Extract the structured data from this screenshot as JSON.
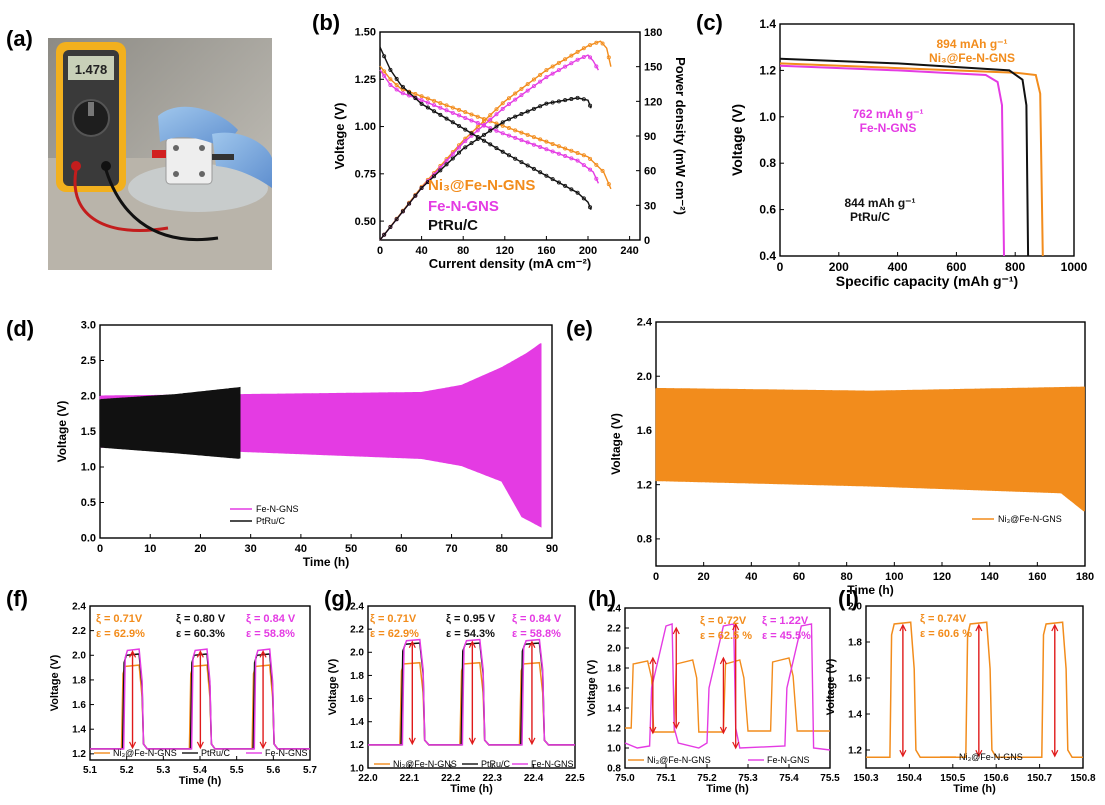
{
  "panel_labels": [
    "(a)",
    "(b)",
    "(c)",
    "(d)",
    "(e)",
    "(f)",
    "(g)",
    "(h)",
    "(i)"
  ],
  "photo": {
    "meter_reading": "1.478"
  },
  "colors": {
    "orange": "#f28c1c",
    "magenta": "#e43be3",
    "black": "#111111",
    "red": "#e01a1a"
  },
  "chart_data": [
    {
      "id": "b",
      "type": "line",
      "xlabel": "Current density (mA cm⁻²)",
      "ylabel": "Voltage (V)",
      "ylabel_right": "Power density (mW cm⁻²)",
      "xlim": [
        0,
        250
      ],
      "ylim": [
        0.4,
        1.5
      ],
      "ylim_right": [
        0,
        180
      ],
      "xticks": [
        "0",
        "40",
        "80",
        "120",
        "160",
        "200",
        "240"
      ],
      "yticks": [
        "0.50",
        "0.75",
        "1.00",
        "1.25",
        "1.50"
      ],
      "yticks_right": [
        "0",
        "30",
        "60",
        "90",
        "120",
        "150",
        "180"
      ],
      "series": [
        {
          "name": "Ni₃@Fe-N-GNS",
          "color": "#f28c1c",
          "voltage": [
            [
              0,
              1.32
            ],
            [
              10,
              1.25
            ],
            [
              20,
              1.2
            ],
            [
              40,
              1.16
            ],
            [
              80,
              1.08
            ],
            [
              120,
              1.0
            ],
            [
              160,
              0.92
            ],
            [
              200,
              0.84
            ],
            [
              215,
              0.76
            ],
            [
              222,
              0.67
            ]
          ],
          "power": [
            [
              0,
              0
            ],
            [
              40,
              46
            ],
            [
              80,
              86
            ],
            [
              120,
              120
            ],
            [
              160,
              147
            ],
            [
              200,
              168
            ],
            [
              212,
              172
            ],
            [
              218,
              166
            ],
            [
              222,
              150
            ]
          ]
        },
        {
          "name": "Fe-N-GNS",
          "color": "#e43be3",
          "voltage": [
            [
              0,
              1.3
            ],
            [
              10,
              1.22
            ],
            [
              20,
              1.18
            ],
            [
              40,
              1.14
            ],
            [
              80,
              1.05
            ],
            [
              120,
              0.96
            ],
            [
              160,
              0.88
            ],
            [
              190,
              0.82
            ],
            [
              205,
              0.76
            ],
            [
              210,
              0.7
            ]
          ],
          "power": [
            [
              0,
              0
            ],
            [
              40,
              45
            ],
            [
              80,
              84
            ],
            [
              120,
              115
            ],
            [
              160,
              141
            ],
            [
              190,
              156
            ],
            [
              200,
              160
            ],
            [
              205,
              155
            ],
            [
              210,
              147
            ]
          ]
        },
        {
          "name": "PtRu/C",
          "color": "#111111",
          "voltage": [
            [
              0,
              1.42
            ],
            [
              10,
              1.3
            ],
            [
              20,
              1.22
            ],
            [
              40,
              1.12
            ],
            [
              80,
              0.99
            ],
            [
              120,
              0.86
            ],
            [
              160,
              0.74
            ],
            [
              190,
              0.65
            ],
            [
              200,
              0.6
            ],
            [
              203,
              0.56
            ]
          ],
          "power": [
            [
              0,
              0
            ],
            [
              40,
              45
            ],
            [
              80,
              79
            ],
            [
              120,
              103
            ],
            [
              160,
              118
            ],
            [
              190,
              123
            ],
            [
              200,
              121
            ],
            [
              203,
              114
            ]
          ]
        }
      ]
    },
    {
      "id": "c",
      "type": "line",
      "xlabel": "Specific capacity (mAh g⁻¹)",
      "ylabel": "Voltage (V)",
      "xlim": [
        0,
        1000
      ],
      "ylim": [
        0.4,
        1.4
      ],
      "xticks": [
        "0",
        "200",
        "400",
        "600",
        "800",
        "1000"
      ],
      "yticks": [
        "0.4",
        "0.6",
        "0.8",
        "1.0",
        "1.2",
        "1.4"
      ],
      "annotations": [
        "894 mAh g⁻¹",
        "Ni₃@Fe-N-GNS",
        "762 mAh g⁻¹",
        "Fe-N-GNS",
        "844 mAh g⁻¹",
        "PtRu/C"
      ],
      "series": [
        {
          "name": "Ni₃@Fe-N-GNS",
          "color": "#f28c1c",
          "points": [
            [
              0,
              1.23
            ],
            [
              400,
              1.21
            ],
            [
              800,
              1.19
            ],
            [
              870,
              1.18
            ],
            [
              885,
              1.1
            ],
            [
              894,
              0.4
            ]
          ]
        },
        {
          "name": "Fe-N-GNS",
          "color": "#e43be3",
          "points": [
            [
              0,
              1.22
            ],
            [
              400,
              1.2
            ],
            [
              700,
              1.18
            ],
            [
              740,
              1.15
            ],
            [
              755,
              1.05
            ],
            [
              762,
              0.4
            ]
          ]
        },
        {
          "name": "PtRu/C",
          "color": "#111111",
          "points": [
            [
              0,
              1.25
            ],
            [
              400,
              1.23
            ],
            [
              780,
              1.2
            ],
            [
              825,
              1.16
            ],
            [
              838,
              1.05
            ],
            [
              844,
              0.4
            ]
          ]
        }
      ]
    },
    {
      "id": "d",
      "type": "line",
      "xlabel": "Time (h)",
      "ylabel": "Voltage (V)",
      "xlim": [
        0,
        90
      ],
      "ylim": [
        0,
        3.0
      ],
      "xticks": [
        "0",
        "10",
        "20",
        "30",
        "40",
        "50",
        "60",
        "70",
        "80",
        "90"
      ],
      "yticks": [
        "0.0",
        "0.5",
        "1.0",
        "1.5",
        "2.0",
        "2.5",
        "3.0"
      ],
      "legend": [
        "Fe-N-GNS",
        "PtRu/C"
      ],
      "legend_position": "bottom-center",
      "series": [
        {
          "name": "Fe-N-GNS",
          "color": "#e43be3",
          "charge": [
            [
              0,
              2.0
            ],
            [
              28,
              2.02
            ],
            [
              64,
              2.05
            ],
            [
              72,
              2.15
            ],
            [
              80,
              2.4
            ],
            [
              85,
              2.6
            ],
            [
              88,
              2.75
            ]
          ],
          "discharge": [
            [
              0,
              1.28
            ],
            [
              28,
              1.22
            ],
            [
              64,
              1.12
            ],
            [
              72,
              1.02
            ],
            [
              80,
              0.8
            ],
            [
              84,
              0.3
            ],
            [
              88,
              0.15
            ]
          ]
        },
        {
          "name": "PtRu/C",
          "color": "#111111",
          "charge": [
            [
              0,
              1.95
            ],
            [
              15,
              2.02
            ],
            [
              28,
              2.12
            ]
          ],
          "discharge": [
            [
              0,
              1.28
            ],
            [
              15,
              1.2
            ],
            [
              28,
              1.12
            ]
          ]
        }
      ]
    },
    {
      "id": "e",
      "type": "line",
      "xlabel": "Time (h)",
      "ylabel": "Voltage (V)",
      "xlim": [
        0,
        180
      ],
      "ylim": [
        0.6,
        2.4
      ],
      "xticks": [
        "0",
        "20",
        "40",
        "60",
        "80",
        "100",
        "120",
        "140",
        "160",
        "180"
      ],
      "yticks": [
        "0.8",
        "1.2",
        "1.6",
        "2.0",
        "2.4"
      ],
      "legend": [
        "Ni₃@Fe-N-GNS"
      ],
      "legend_position": "bottom-right",
      "series": [
        {
          "name": "Ni₃@Fe-N-GNS",
          "color": "#f28c1c",
          "charge": [
            [
              0,
              1.91
            ],
            [
              90,
              1.89
            ],
            [
              180,
              1.92
            ]
          ],
          "discharge": [
            [
              0,
              1.23
            ],
            [
              90,
              1.19
            ],
            [
              170,
              1.14
            ],
            [
              180,
              1.0
            ]
          ]
        }
      ]
    },
    {
      "id": "f",
      "type": "line",
      "xlabel": "Time (h)",
      "ylabel": "Voltage (V)",
      "xlim": [
        5.1,
        5.7
      ],
      "ylim": [
        1.15,
        2.4
      ],
      "xticks": [
        "5.1",
        "5.2",
        "5.3",
        "5.4",
        "5.5",
        "5.6",
        "5.7"
      ],
      "yticks": [
        "1.2",
        "1.4",
        "1.6",
        "1.8",
        "2.0",
        "2.2",
        "2.4"
      ],
      "legend": [
        "Ni₃@Fe-N-GNS",
        "PtRu/C",
        "Fe-N-GNS"
      ],
      "legend_position": "bottom",
      "annotations": [
        {
          "xi": "ξ = 0.71V",
          "eps": "ε = 62.9%",
          "color": "#f28c1c"
        },
        {
          "xi": "ξ = 0.80 V",
          "eps": "ε = 60.3%",
          "color": "#111111"
        },
        {
          "xi": "ξ = 0.84 V",
          "eps": "ε = 58.8%",
          "color": "#e43be3"
        }
      ],
      "cycle_start": [
        5.186,
        5.371,
        5.542
      ],
      "cycle_width": 0.06,
      "low": 1.24,
      "series": [
        {
          "name": "Ni₃@Fe-N-GNS",
          "color": "#f28c1c",
          "high": 1.91
        },
        {
          "name": "PtRu/C",
          "color": "#111111",
          "high": 2.0
        },
        {
          "name": "Fe-N-GNS",
          "color": "#e43be3",
          "high": 2.04
        }
      ]
    },
    {
      "id": "g",
      "type": "line",
      "xlabel": "Time (h)",
      "ylabel": "Voltage (V)",
      "xlim": [
        22.0,
        22.5
      ],
      "ylim": [
        1.0,
        2.4
      ],
      "xticks": [
        "22.0",
        "22.1",
        "22.2",
        "22.3",
        "22.4",
        "22.5"
      ],
      "yticks": [
        "1.0",
        "1.2",
        "1.4",
        "1.6",
        "1.8",
        "2.0",
        "2.2",
        "2.4"
      ],
      "legend": [
        "Ni₃@Fe-N-GNS",
        "PtRu/C",
        "Fe-N-GNS"
      ],
      "legend_position": "bottom",
      "annotations": [
        {
          "xi": "ξ = 0.71V",
          "eps": "ε = 62.9%",
          "color": "#f28c1c"
        },
        {
          "xi": "ξ = 0.95 V",
          "eps": "ε = 54.3%",
          "color": "#111111"
        },
        {
          "xi": "ξ = 0.84 V",
          "eps": "ε = 58.8%",
          "color": "#e43be3"
        }
      ],
      "cycle_start": [
        22.077,
        22.222,
        22.366
      ],
      "cycle_width": 0.06,
      "low": 1.2,
      "series": [
        {
          "name": "Ni₃@Fe-N-GNS",
          "color": "#f28c1c",
          "high": 1.9
        },
        {
          "name": "PtRu/C",
          "color": "#111111",
          "high": 2.07
        },
        {
          "name": "Fe-N-GNS",
          "color": "#e43be3",
          "high": 2.1
        }
      ]
    },
    {
      "id": "h",
      "type": "line",
      "xlabel": "Time (h)",
      "ylabel": "Voltage (V)",
      "xlim": [
        75.0,
        75.5
      ],
      "ylim": [
        0.8,
        2.4
      ],
      "xticks": [
        "75.0",
        "75.1",
        "75.2",
        "75.3",
        "75.4",
        "75.5"
      ],
      "yticks": [
        "0.8",
        "1.0",
        "1.2",
        "1.4",
        "1.6",
        "1.8",
        "2.0",
        "2.2",
        "2.4"
      ],
      "legend": [
        "Ni₃@Fe-N-GNS",
        "Fe-N-GNS"
      ],
      "legend_position": "bottom",
      "annotations": [
        {
          "xi": "ξ = 0.72V",
          "eps": "ε = 62.5 %",
          "color": "#f28c1c"
        },
        {
          "xi": "ξ = 1.22V",
          "eps": "ε = 45.5%",
          "color": "#e43be3"
        }
      ],
      "series": [
        {
          "name": "Ni₃@Fe-N-GNS",
          "color": "#f28c1c",
          "points": [
            [
              75.0,
              1.2
            ],
            [
              75.015,
              1.2
            ],
            [
              75.02,
              1.84
            ],
            [
              75.055,
              1.87
            ],
            [
              75.065,
              1.7
            ],
            [
              75.07,
              1.16
            ],
            [
              75.12,
              1.16
            ],
            [
              75.125,
              1.84
            ],
            [
              75.165,
              1.88
            ],
            [
              75.175,
              1.7
            ],
            [
              75.18,
              1.16
            ],
            [
              75.24,
              1.16
            ],
            [
              75.245,
              1.84
            ],
            [
              75.28,
              1.88
            ],
            [
              75.29,
              1.7
            ],
            [
              75.3,
              1.17
            ],
            [
              75.355,
              1.17
            ],
            [
              75.36,
              1.86
            ],
            [
              75.4,
              1.9
            ],
            [
              75.41,
              1.72
            ],
            [
              75.42,
              1.17
            ],
            [
              75.5,
              1.17
            ]
          ]
        },
        {
          "name": "Fe-N-GNS",
          "color": "#e43be3",
          "points": [
            [
              75.0,
              1.05
            ],
            [
              75.03,
              1.0
            ],
            [
              75.06,
              1.02
            ],
            [
              75.065,
              1.6
            ],
            [
              75.1,
              2.22
            ],
            [
              75.115,
              2.24
            ],
            [
              75.12,
              1.2
            ],
            [
              75.13,
              1.05
            ],
            [
              75.18,
              1.0
            ],
            [
              75.2,
              1.05
            ],
            [
              75.205,
              1.6
            ],
            [
              75.24,
              2.22
            ],
            [
              75.265,
              2.24
            ],
            [
              75.27,
              1.2
            ],
            [
              75.28,
              1.0
            ],
            [
              75.39,
              1.02
            ],
            [
              75.395,
              1.6
            ],
            [
              75.43,
              2.22
            ],
            [
              75.455,
              2.24
            ],
            [
              75.46,
              1.0
            ],
            [
              75.5,
              0.98
            ]
          ]
        }
      ],
      "arrows": [
        [
          75.068,
          1.15,
          75.068,
          1.9
        ],
        [
          75.125,
          1.2,
          75.125,
          2.2
        ],
        [
          75.24,
          1.15,
          75.24,
          1.9
        ],
        [
          75.27,
          1.0,
          75.27,
          2.24
        ]
      ]
    },
    {
      "id": "i",
      "type": "line",
      "xlabel": "Time (h)",
      "ylabel": "Voltage (V)",
      "xlim": [
        150.3,
        150.8
      ],
      "ylim": [
        1.1,
        2.0
      ],
      "xticks": [
        "150.3",
        "150.4",
        "150.5",
        "150.6",
        "150.7",
        "150.8"
      ],
      "yticks": [
        "1.2",
        "1.4",
        "1.6",
        "1.8",
        "2.0"
      ],
      "legend": [
        "Ni₃@Fe-N-GNS"
      ],
      "legend_position": "bottom",
      "annotations": [
        {
          "xi": "ξ = 0.74V",
          "eps": "ε = 60.6 %",
          "color": "#f28c1c"
        }
      ],
      "cycle_start": [
        150.355,
        150.53,
        150.705
      ],
      "cycle_width": 0.06,
      "low": 1.16,
      "series": [
        {
          "name": "Ni₃@Fe-N-GNS",
          "color": "#f28c1c",
          "high": 1.9
        }
      ]
    }
  ]
}
